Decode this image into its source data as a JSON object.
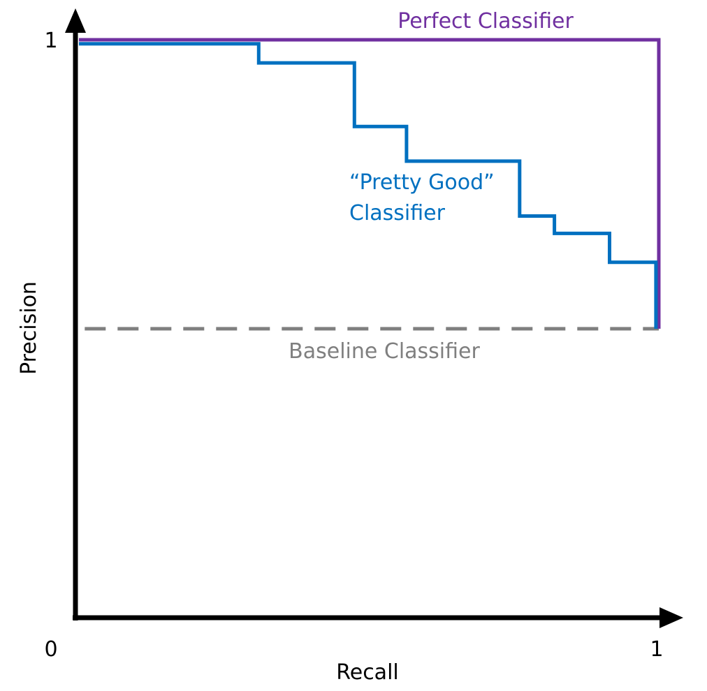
{
  "chart_data": {
    "type": "line",
    "title": "",
    "xlabel": "Recall",
    "ylabel": "Precision",
    "xlim": [
      0,
      1
    ],
    "ylim": [
      0,
      1
    ],
    "grid": false,
    "x_ticks": [
      "0",
      "1"
    ],
    "y_ticks": [
      "1"
    ],
    "series": [
      {
        "name": "Perfect Classifier",
        "label_lines": [
          "Perfect Classifier"
        ],
        "color": "#7030a0",
        "style": "solid",
        "x": [
          0,
          1,
          1
        ],
        "y": [
          1,
          1,
          0.5
        ]
      },
      {
        "name": "“Pretty Good” Classifier",
        "label_lines": [
          "“Pretty Good”",
          "Classifier"
        ],
        "color": "#0070c0",
        "style": "step",
        "x": [
          0,
          0.31,
          0.31,
          0.475,
          0.475,
          0.565,
          0.565,
          0.76,
          0.76,
          0.82,
          0.82,
          0.915,
          0.915,
          0.995,
          0.995
        ],
        "y": [
          0.993,
          0.993,
          0.96,
          0.96,
          0.85,
          0.85,
          0.79,
          0.79,
          0.695,
          0.695,
          0.665,
          0.665,
          0.615,
          0.615,
          0.5
        ]
      },
      {
        "name": "Baseline Classifier",
        "label_lines": [
          "Baseline Classifier"
        ],
        "color": "#7f7f7f",
        "style": "dashed",
        "x": [
          0.01,
          1
        ],
        "y": [
          0.5,
          0.5
        ]
      }
    ]
  }
}
